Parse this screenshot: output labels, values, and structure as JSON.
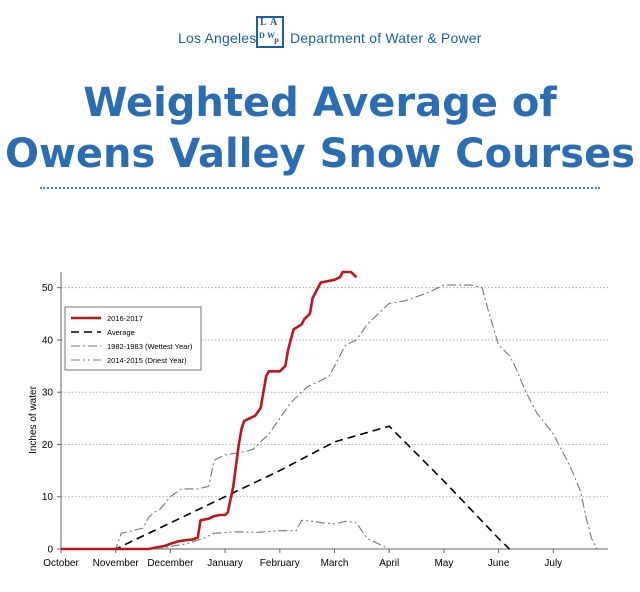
{
  "header": {
    "org_left": "Los Angeles",
    "org_right": "Department of Water & Power",
    "logo_letters": [
      "L",
      "A",
      "D",
      "W",
      "P"
    ]
  },
  "title": {
    "line1": "Weighted Average of",
    "line2": "Owens Valley Snow Courses"
  },
  "colors": {
    "brand_blue": "#2a6db3",
    "series_2016": "#c0161b",
    "series_average": "#000000",
    "series_wet": "#777777",
    "series_dry": "#777777"
  },
  "chart_data": {
    "type": "line",
    "title": "",
    "xlabel": "",
    "ylabel": "Inches of water",
    "xlim": [
      0,
      10
    ],
    "ylim": [
      0,
      53
    ],
    "x_tick_labels": [
      "October",
      "November",
      "December",
      "January",
      "February",
      "March",
      "April",
      "May",
      "June",
      "July"
    ],
    "y_ticks": [
      0,
      10,
      20,
      30,
      40,
      50
    ],
    "grid": "horizontal dotted",
    "legend_position": "top-left",
    "series": [
      {
        "name": "2016-2017",
        "style": "solid",
        "color": "#c0161b",
        "points": [
          [
            0,
            0
          ],
          [
            1.6,
            0
          ],
          [
            1.75,
            0.3
          ],
          [
            1.9,
            0.6
          ],
          [
            2.0,
            1
          ],
          [
            2.15,
            1.5
          ],
          [
            2.3,
            1.7
          ],
          [
            2.4,
            1.8
          ],
          [
            2.5,
            2.2
          ],
          [
            2.55,
            5.5
          ],
          [
            2.7,
            5.8
          ],
          [
            2.8,
            6.3
          ],
          [
            2.9,
            6.5
          ],
          [
            3.0,
            6.5
          ],
          [
            3.05,
            7
          ],
          [
            3.15,
            12
          ],
          [
            3.2,
            16
          ],
          [
            3.25,
            20
          ],
          [
            3.3,
            23
          ],
          [
            3.35,
            24.5
          ],
          [
            3.45,
            25
          ],
          [
            3.55,
            25.5
          ],
          [
            3.65,
            27
          ],
          [
            3.7,
            30
          ],
          [
            3.75,
            33
          ],
          [
            3.8,
            34
          ],
          [
            4.0,
            34
          ],
          [
            4.1,
            35
          ],
          [
            4.15,
            38
          ],
          [
            4.2,
            40
          ],
          [
            4.25,
            42
          ],
          [
            4.4,
            43
          ],
          [
            4.45,
            44
          ],
          [
            4.55,
            45
          ],
          [
            4.6,
            48
          ],
          [
            4.7,
            50
          ],
          [
            4.75,
            51
          ],
          [
            5.0,
            51.5
          ],
          [
            5.1,
            52
          ],
          [
            5.15,
            53
          ],
          [
            5.3,
            53
          ],
          [
            5.4,
            52
          ]
        ]
      },
      {
        "name": "Average",
        "style": "dashed",
        "color": "#000000",
        "points": [
          [
            0,
            0
          ],
          [
            1.0,
            0
          ],
          [
            2.0,
            5
          ],
          [
            3.0,
            10
          ],
          [
            4.0,
            15
          ],
          [
            5.0,
            20.5
          ],
          [
            6.0,
            23.5
          ],
          [
            7.0,
            13
          ],
          [
            8.0,
            2
          ],
          [
            8.2,
            0
          ]
        ]
      },
      {
        "name": "1982-1983 (Wettest Year)",
        "style": "dash-dot",
        "color": "#777777",
        "points": [
          [
            0,
            0
          ],
          [
            1.0,
            0
          ],
          [
            1.1,
            3
          ],
          [
            1.3,
            3.5
          ],
          [
            1.5,
            4
          ],
          [
            1.6,
            6
          ],
          [
            1.7,
            7
          ],
          [
            1.8,
            7.5
          ],
          [
            2.0,
            10
          ],
          [
            2.2,
            11.5
          ],
          [
            2.5,
            11.5
          ],
          [
            2.7,
            12
          ],
          [
            2.8,
            17
          ],
          [
            3.0,
            18
          ],
          [
            3.3,
            18.5
          ],
          [
            3.5,
            19
          ],
          [
            3.6,
            20
          ],
          [
            3.8,
            22
          ],
          [
            4.0,
            25
          ],
          [
            4.2,
            28
          ],
          [
            4.5,
            31
          ],
          [
            4.7,
            32
          ],
          [
            4.9,
            33
          ],
          [
            5.0,
            35
          ],
          [
            5.2,
            39
          ],
          [
            5.4,
            40
          ],
          [
            5.6,
            43
          ],
          [
            5.8,
            45
          ],
          [
            6.0,
            47
          ],
          [
            6.3,
            47.5
          ],
          [
            6.7,
            49
          ],
          [
            7.0,
            50.5
          ],
          [
            7.5,
            50.5
          ],
          [
            7.7,
            50
          ],
          [
            7.8,
            46
          ],
          [
            8.0,
            39
          ],
          [
            8.2,
            37
          ],
          [
            8.3,
            35
          ],
          [
            8.5,
            30
          ],
          [
            8.7,
            26
          ],
          [
            9.0,
            22
          ],
          [
            9.3,
            16
          ],
          [
            9.5,
            11
          ],
          [
            9.6,
            6
          ],
          [
            9.7,
            2
          ],
          [
            9.8,
            0
          ]
        ]
      },
      {
        "name": "2014-2015 (Driest Year)",
        "style": "dash-dot-dot",
        "color": "#777777",
        "points": [
          [
            0,
            0
          ],
          [
            1.8,
            0
          ],
          [
            2.0,
            0.5
          ],
          [
            2.3,
            1
          ],
          [
            2.6,
            2
          ],
          [
            2.8,
            3
          ],
          [
            3.2,
            3.3
          ],
          [
            3.6,
            3.2
          ],
          [
            4.0,
            3.5
          ],
          [
            4.3,
            3.5
          ],
          [
            4.4,
            5.5
          ],
          [
            4.6,
            5.3
          ],
          [
            4.8,
            5
          ],
          [
            5.0,
            4.8
          ],
          [
            5.2,
            5.3
          ],
          [
            5.4,
            5
          ],
          [
            5.6,
            2
          ],
          [
            5.8,
            1
          ],
          [
            6.0,
            0
          ]
        ]
      }
    ]
  }
}
